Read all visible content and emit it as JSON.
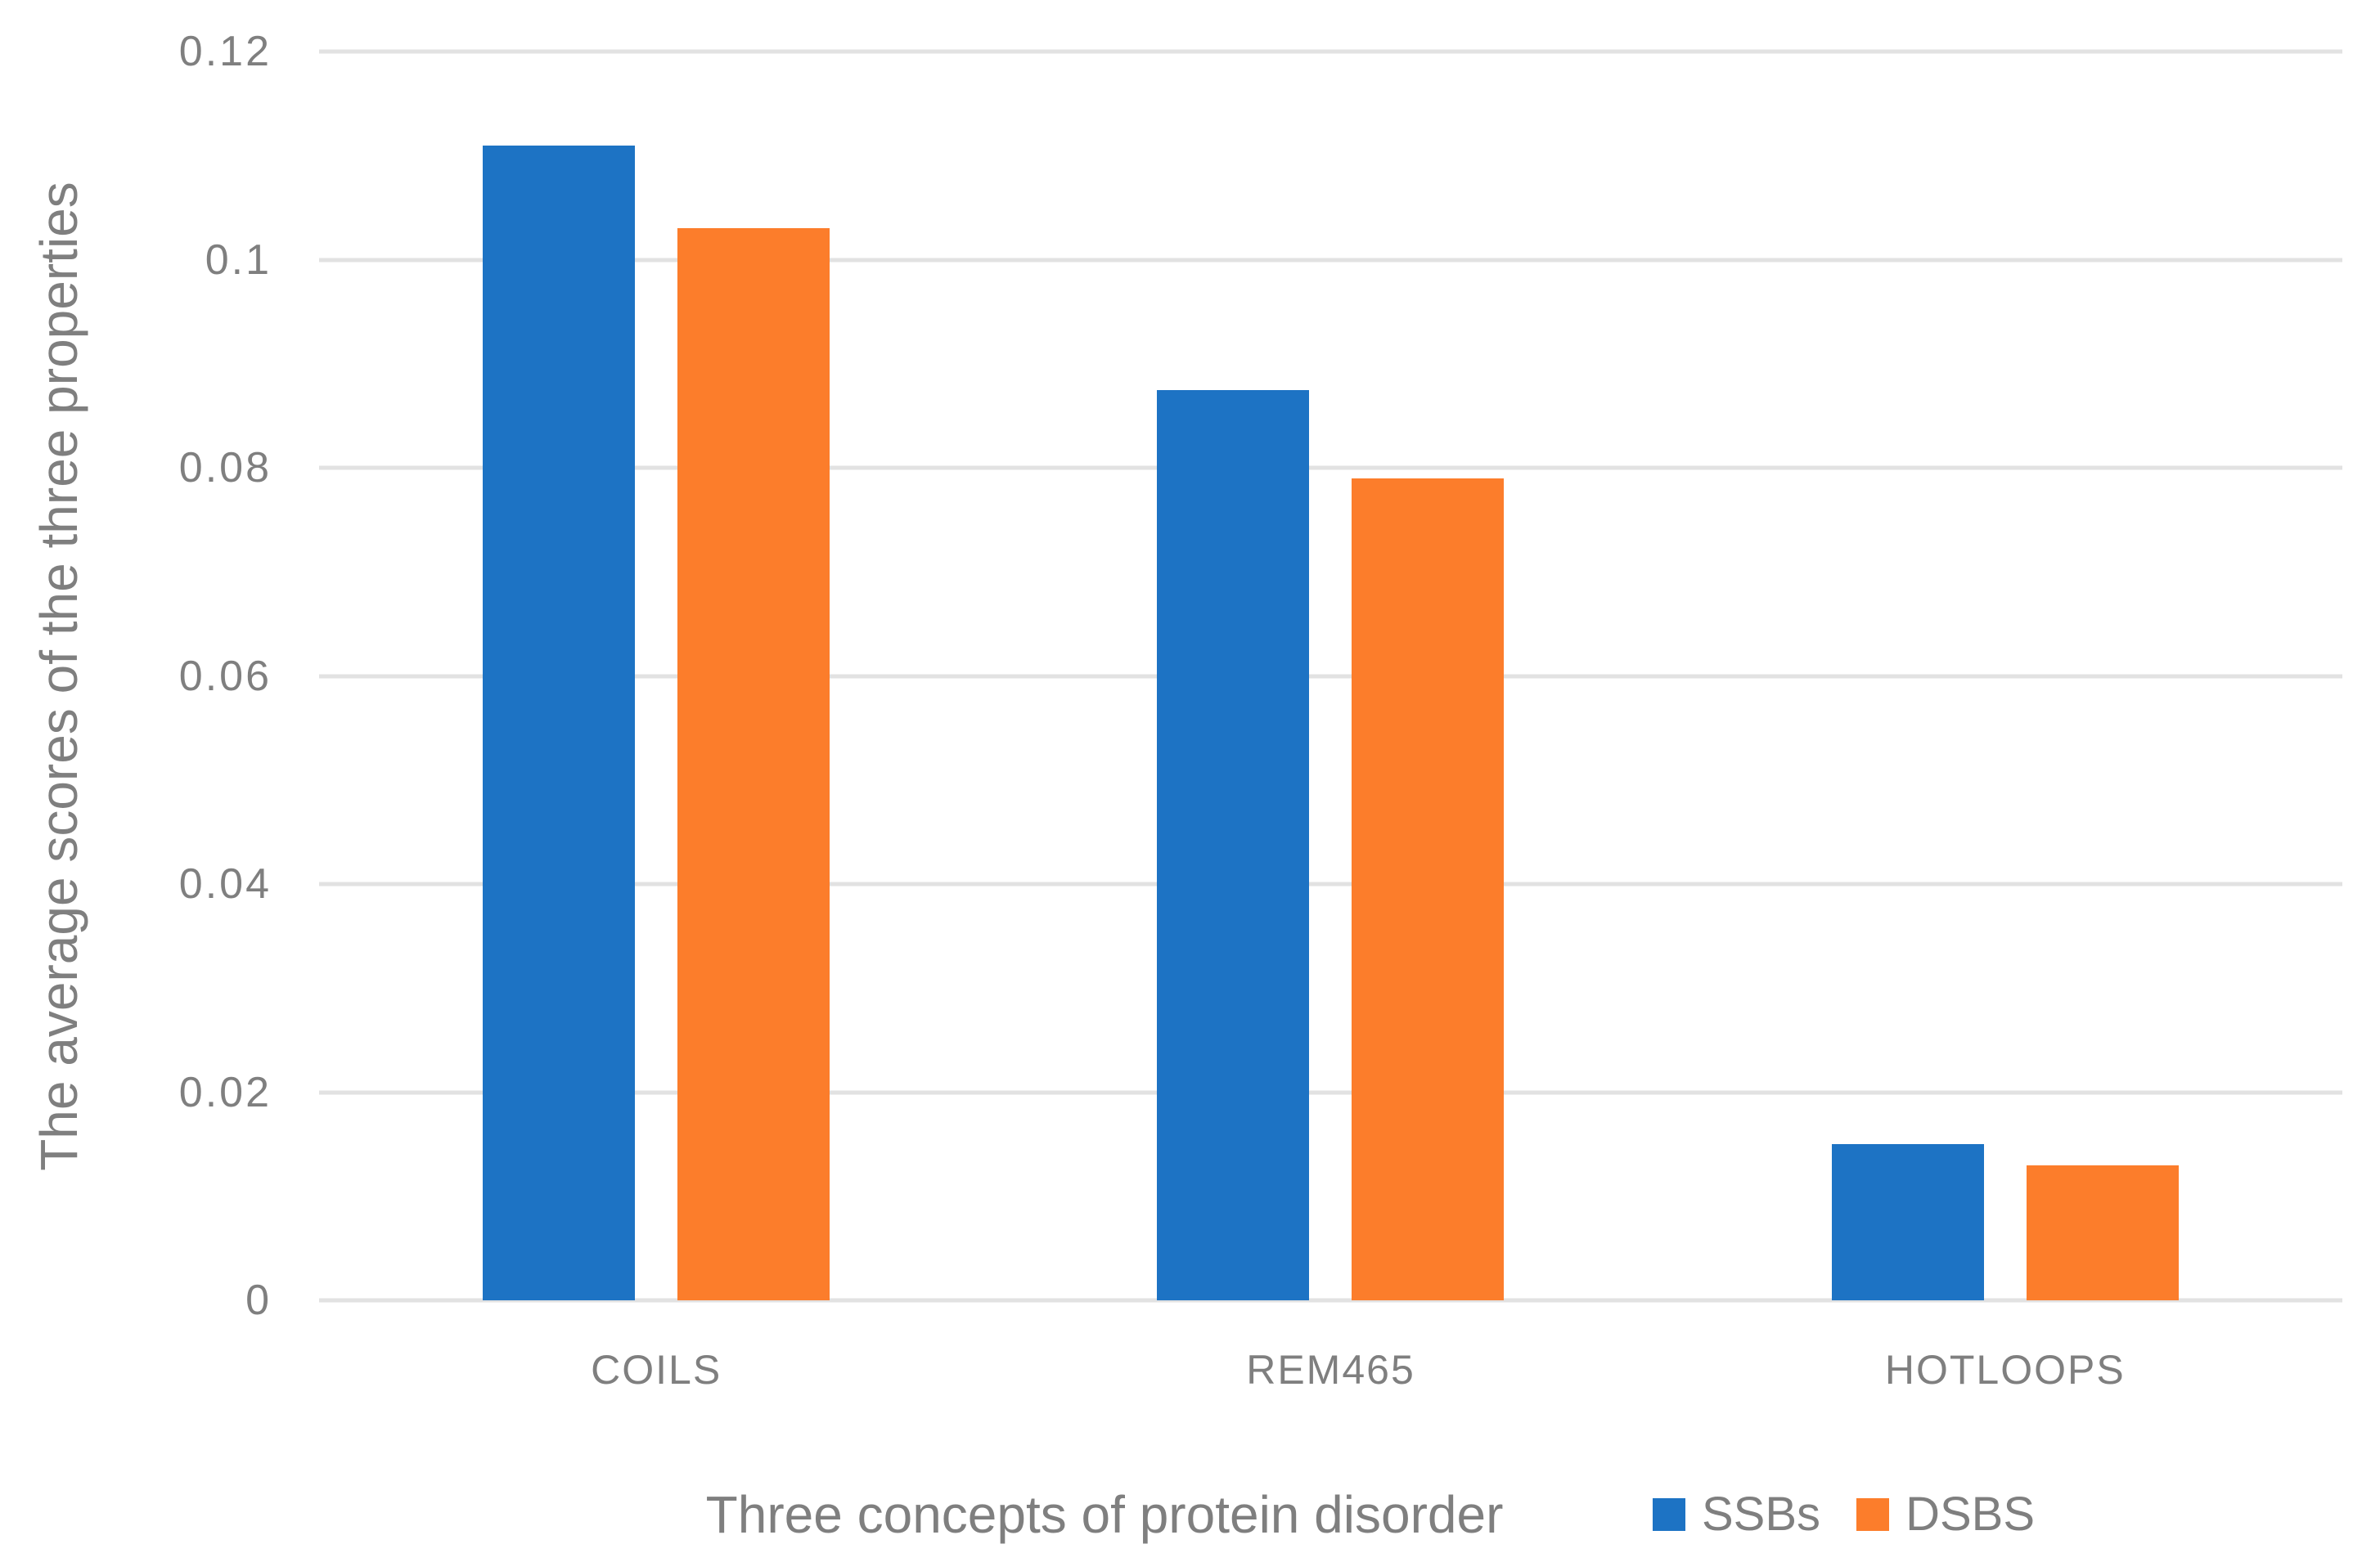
{
  "chart_data": {
    "type": "bar",
    "title": "",
    "categories": [
      "COILS",
      "REM465",
      "HOTLOOPS"
    ],
    "series": [
      {
        "name": "SSBs",
        "color": "#1D73C4",
        "values": [
          0.111,
          0.0875,
          0.015
        ]
      },
      {
        "name": "DSBS",
        "color": "#FC7D2B",
        "values": [
          0.103,
          0.079,
          0.013
        ]
      }
    ],
    "xlabel": "Three concepts of protein disorder",
    "ylabel": "The average scores of the three properties",
    "ylim": [
      0,
      0.12
    ],
    "y_ticks": [
      0,
      0.02,
      0.04,
      0.06,
      0.08,
      0.1,
      0.12
    ],
    "y_tick_labels": [
      "0",
      "0.02",
      "0.04",
      "0.06",
      "0.08",
      "0.1",
      "0.12"
    ],
    "grid": true,
    "legend_position": "bottom-right"
  },
  "styles": {
    "text_color": "#7F7F7F",
    "gridline_color": "#E2E2E2",
    "background": "#FFFFFF"
  }
}
